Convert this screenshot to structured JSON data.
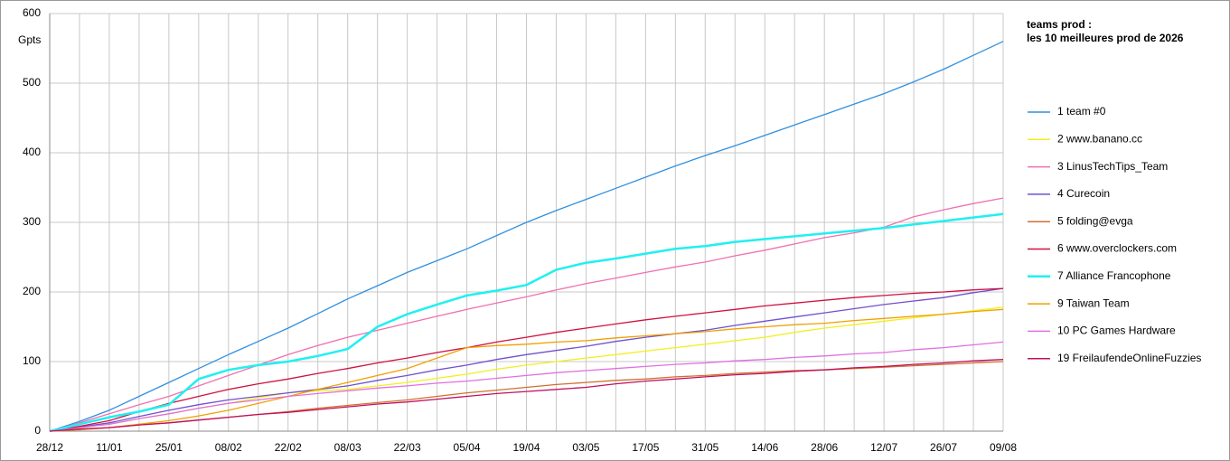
{
  "chart_data": {
    "type": "line",
    "y_label": "Gpts",
    "legend_title": [
      "teams prod :",
      "les 10 meilleures prod de 2026"
    ],
    "categories": [
      "28/12",
      null,
      "11/01",
      null,
      "25/01",
      null,
      "08/02",
      null,
      "22/02",
      null,
      "08/03",
      null,
      "22/03",
      null,
      "05/04",
      null,
      "19/04",
      null,
      "03/05",
      null,
      "17/05",
      null,
      "31/05",
      null,
      "14/06",
      null,
      "28/06",
      null,
      "12/07",
      null,
      "26/07",
      null,
      "09/08"
    ],
    "ylim": [
      0,
      600
    ],
    "yticks": [
      0,
      100,
      200,
      300,
      400,
      500,
      600
    ],
    "grid": true,
    "legend": "right",
    "series": [
      {
        "name": "1 team #0",
        "color": "#3090e0",
        "values": [
          0,
          14,
          30,
          50,
          70,
          90,
          110,
          129,
          148,
          169,
          190,
          209,
          228,
          245,
          262,
          281,
          300,
          317,
          333,
          349,
          365,
          381,
          396,
          410,
          425,
          440,
          455,
          470,
          485,
          502,
          520,
          540,
          560
        ]
      },
      {
        "name": "2 www.banano.cc",
        "color": "#f0f020",
        "values": [
          0,
          5,
          10,
          18,
          25,
          33,
          40,
          48,
          55,
          58,
          60,
          65,
          70,
          76,
          82,
          89,
          95,
          100,
          105,
          110,
          115,
          120,
          125,
          130,
          135,
          142,
          148,
          153,
          158,
          163,
          168,
          173,
          178
        ]
      },
      {
        "name": "3 LinusTechTips_Team",
        "color": "#f070b0",
        "values": [
          0,
          12,
          25,
          38,
          50,
          65,
          80,
          95,
          110,
          123,
          135,
          145,
          155,
          165,
          175,
          184,
          193,
          203,
          212,
          220,
          228,
          236,
          243,
          252,
          260,
          269,
          278,
          285,
          293,
          308,
          318,
          327,
          335
        ]
      },
      {
        "name": "4 Curecoin",
        "color": "#7050d0",
        "values": [
          0,
          6,
          12,
          21,
          30,
          38,
          45,
          50,
          55,
          60,
          65,
          73,
          80,
          88,
          95,
          103,
          110,
          116,
          122,
          129,
          135,
          140,
          145,
          152,
          158,
          164,
          170,
          176,
          182,
          187,
          192,
          199,
          205
        ]
      },
      {
        "name": "5 folding@evga",
        "color": "#d07030",
        "values": [
          0,
          3,
          5,
          9,
          12,
          16,
          20,
          24,
          28,
          33,
          37,
          41,
          45,
          50,
          55,
          59,
          63,
          67,
          70,
          73,
          75,
          78,
          80,
          83,
          85,
          87,
          88,
          90,
          92,
          94,
          96,
          98,
          100
        ]
      },
      {
        "name": "6 www.overclockers.com",
        "color": "#d01040",
        "values": [
          0,
          7,
          15,
          28,
          40,
          50,
          60,
          68,
          75,
          83,
          90,
          98,
          105,
          113,
          120,
          128,
          135,
          142,
          148,
          154,
          160,
          165,
          170,
          175,
          180,
          184,
          188,
          192,
          195,
          198,
          200,
          203,
          205
        ]
      },
      {
        "name": "7 Alliance Francophone",
        "color": "#20f0f0",
        "values": [
          0,
          10,
          20,
          28,
          38,
          75,
          88,
          95,
          100,
          108,
          118,
          150,
          168,
          182,
          195,
          202,
          210,
          232,
          242,
          248,
          255,
          262,
          266,
          272,
          276,
          280,
          284,
          288,
          292,
          297,
          302,
          307,
          312
        ]
      },
      {
        "name": "9 Taiwan Team",
        "color": "#f0a000",
        "values": [
          0,
          2,
          5,
          10,
          15,
          22,
          30,
          40,
          50,
          60,
          70,
          80,
          90,
          105,
          120,
          123,
          125,
          128,
          130,
          134,
          137,
          140,
          143,
          147,
          150,
          153,
          155,
          159,
          162,
          165,
          168,
          172,
          175
        ]
      },
      {
        "name": "10 PC Games Hardware",
        "color": "#e070e0",
        "values": [
          0,
          5,
          10,
          18,
          25,
          33,
          40,
          45,
          50,
          54,
          58,
          62,
          65,
          69,
          72,
          76,
          80,
          84,
          87,
          90,
          93,
          96,
          98,
          101,
          103,
          106,
          108,
          111,
          113,
          117,
          120,
          124,
          128
        ]
      },
      {
        "name": "19 FreilaufendeOnlineFuzzies",
        "color": "#c01060",
        "values": [
          0,
          3,
          5,
          9,
          12,
          16,
          20,
          24,
          27,
          31,
          35,
          39,
          42,
          46,
          50,
          54,
          57,
          60,
          63,
          68,
          72,
          75,
          78,
          81,
          83,
          86,
          88,
          91,
          93,
          96,
          98,
          101,
          103
        ]
      }
    ]
  }
}
